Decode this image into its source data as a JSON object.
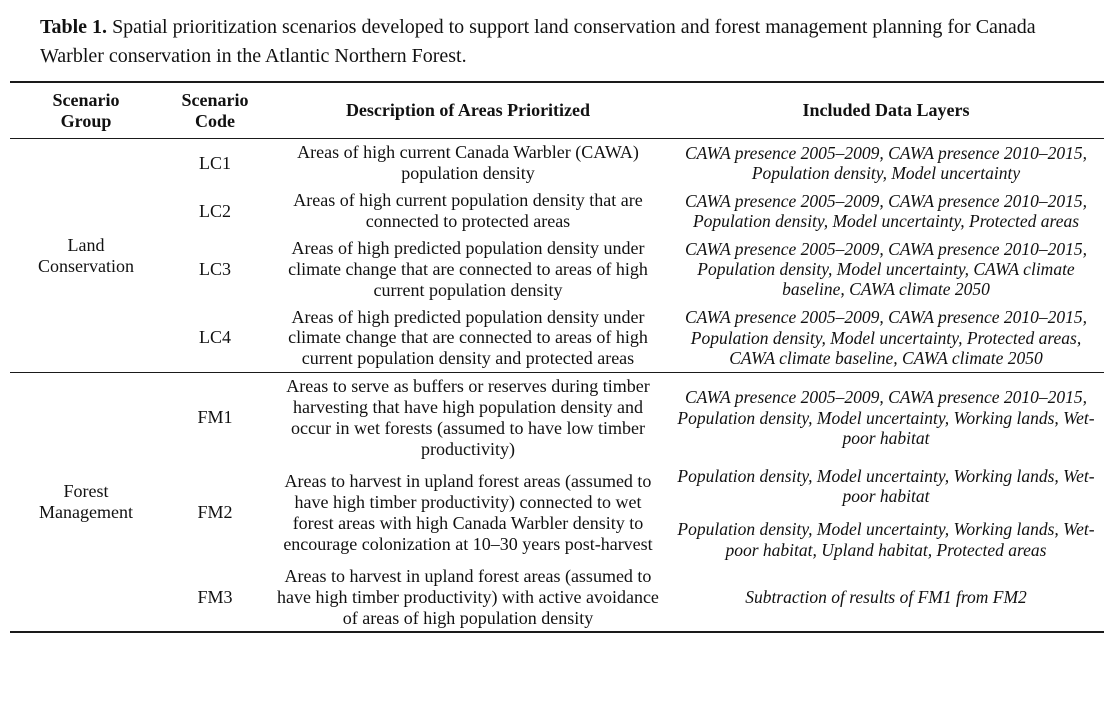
{
  "colors": {
    "text": "#111111",
    "rule": "#1a1a1a",
    "background": "#ffffff"
  },
  "caption": {
    "label": "Table 1.",
    "text": "Spatial prioritization scenarios developed to support land conservation and forest management planning for Canada Warbler conservation in the Atlantic Northern Forest."
  },
  "table": {
    "headers": {
      "group": "Scenario Group",
      "code": "Scenario Code",
      "description": "Description of Areas Prioritized",
      "layers": "Included Data Layers"
    },
    "groups": [
      {
        "label": "Land Conservation",
        "rows": [
          {
            "code": "LC1",
            "description": "Areas of high current Canada Warbler (CAWA) population density",
            "layers": [
              "CAWA presence 2005–2009, CAWA presence 2010–2015, Population density, Model uncertainty"
            ]
          },
          {
            "code": "LC2",
            "description": "Areas of high current population density that are connected to protected areas",
            "layers": [
              "CAWA presence 2005–2009, CAWA presence 2010–2015, Population density, Model uncertainty, Protected areas"
            ]
          },
          {
            "code": "LC3",
            "description": "Areas of high predicted population density under climate change that are connected to areas of high current population density",
            "layers": [
              "CAWA presence 2005–2009, CAWA presence 2010–2015, Population density, Model uncertainty, CAWA climate baseline, CAWA climate 2050"
            ]
          },
          {
            "code": "LC4",
            "description": "Areas of high predicted population density under climate change that are connected to areas of high current population density and protected areas",
            "layers": [
              "CAWA presence 2005–2009, CAWA presence 2010–2015, Population density, Model uncertainty, Protected areas, CAWA climate baseline, CAWA climate 2050"
            ]
          }
        ]
      },
      {
        "label": "Forest Management",
        "rows": [
          {
            "code": "FM1",
            "description": "Areas to serve as buffers or reserves during timber harvesting that have high population density and occur in wet forests (assumed to have low timber productivity)",
            "layers": [
              "CAWA presence 2005–2009, CAWA presence 2010–2015, Population density, Model uncertainty, Working lands, Wet-poor habitat"
            ]
          },
          {
            "code": "FM2",
            "description": "Areas to harvest in upland forest areas (assumed to have high timber productivity) connected to wet forest areas with high Canada Warbler density to encourage colonization at 10–30 years post-harvest",
            "layers": [
              "Population density, Model uncertainty, Working lands, Wet-poor habitat",
              "Population density, Model uncertainty, Working lands, Wet-poor habitat, Upland habitat, Protected areas"
            ]
          },
          {
            "code": "FM3",
            "description": "Areas to harvest in upland forest areas (assumed to have high timber productivity) with active avoidance of areas of high population density",
            "layers": [
              "Subtraction of results of FM1 from FM2"
            ]
          }
        ]
      }
    ]
  }
}
